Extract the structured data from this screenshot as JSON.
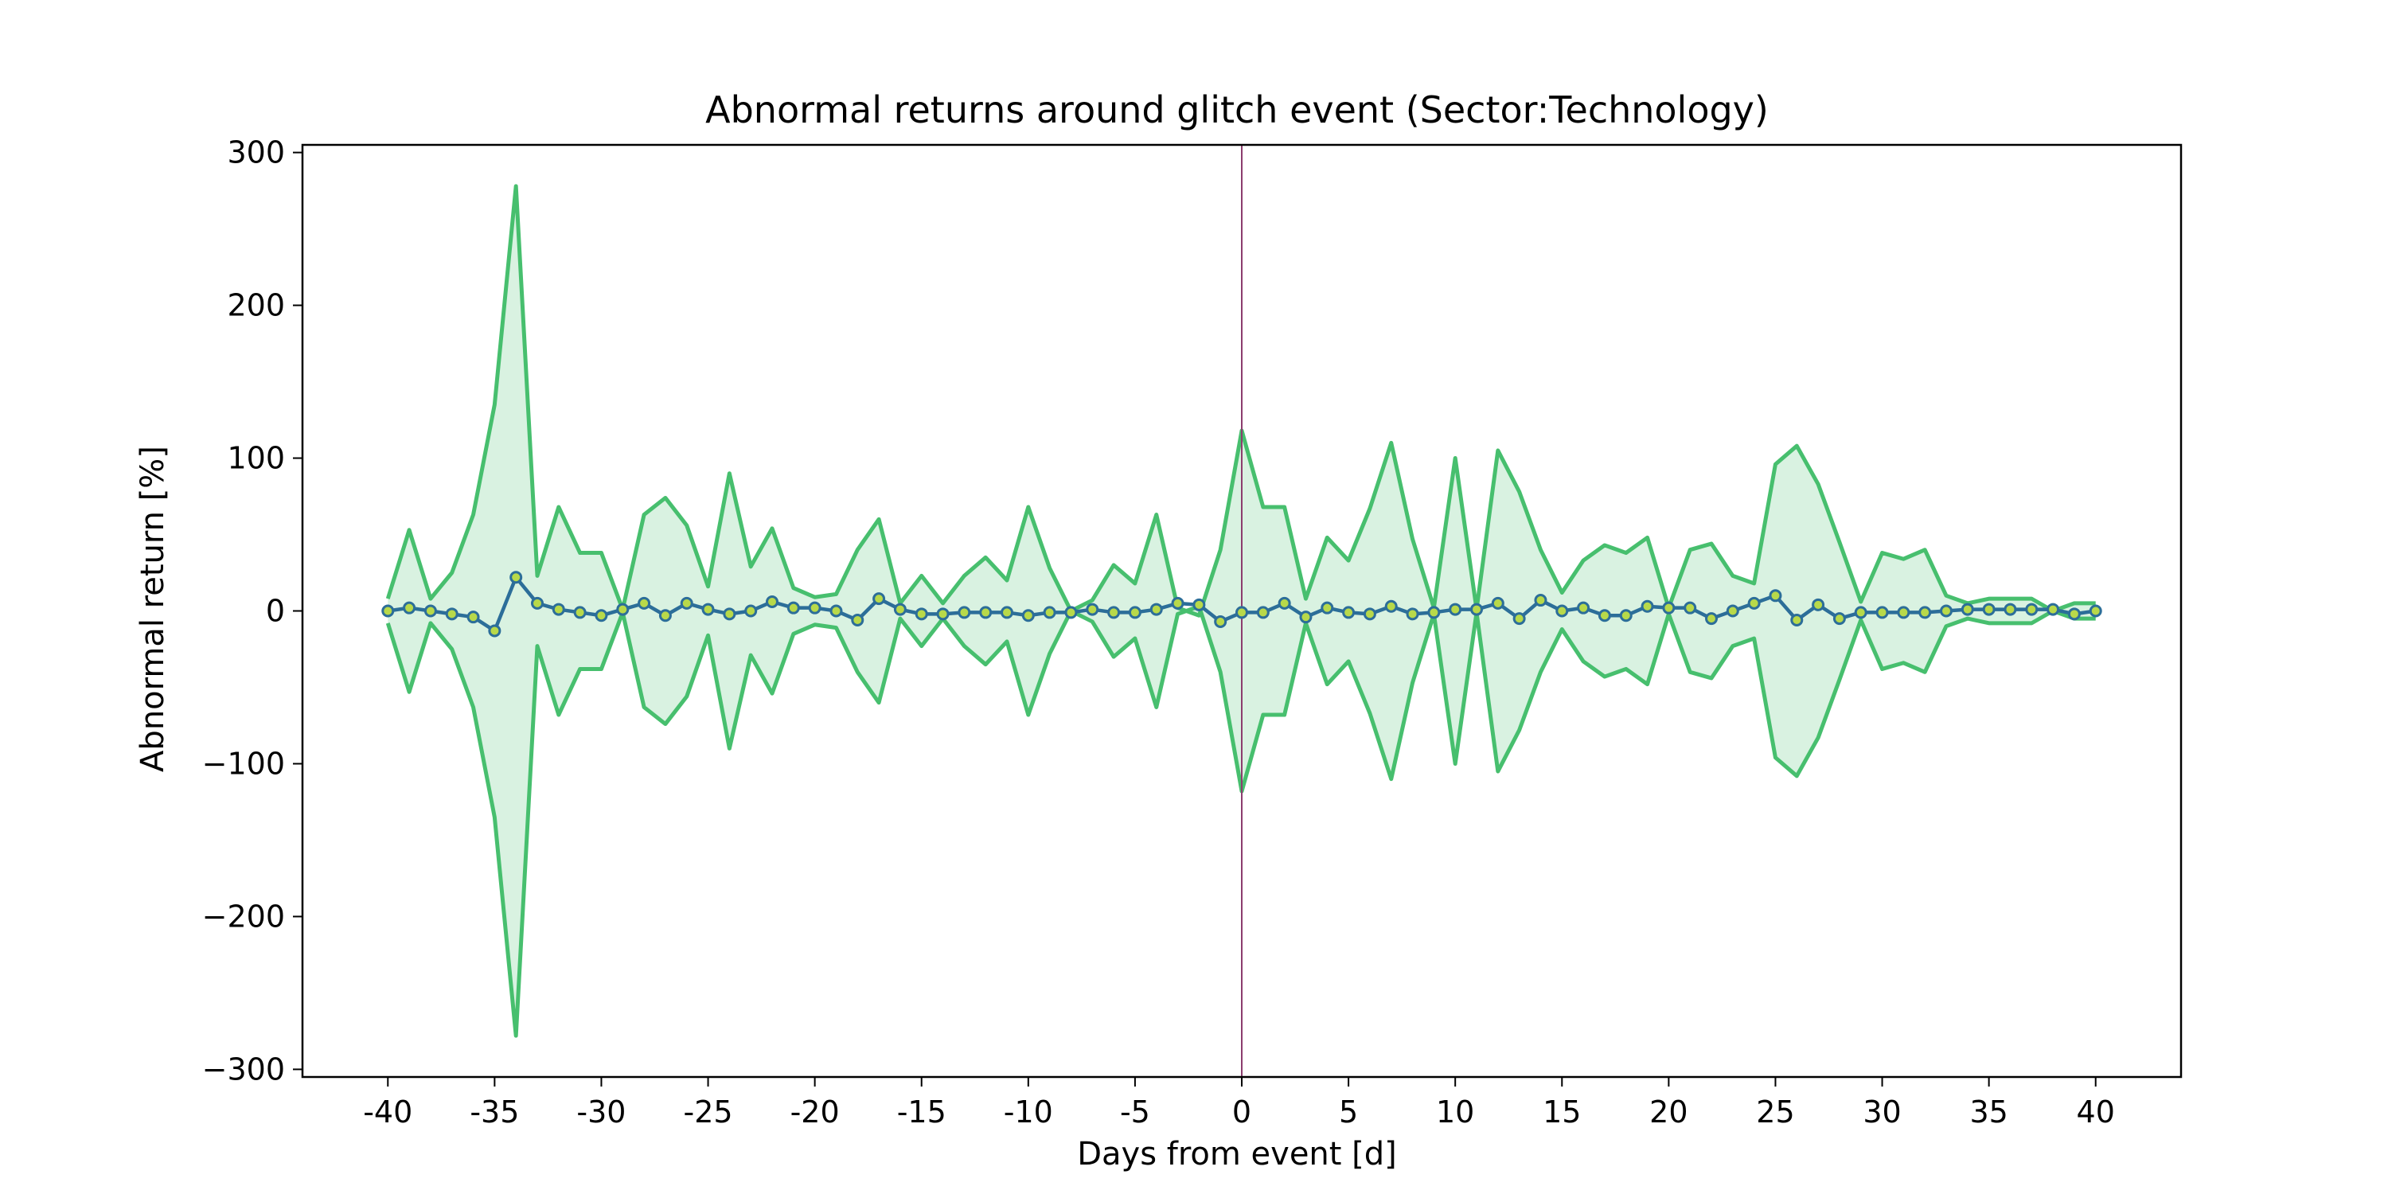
{
  "chart_data": {
    "type": "line",
    "title": "Abnormal returns around glitch event (Sector:Technology)",
    "xlabel": "Days from event [d]",
    "ylabel": "Abnormal return [%]",
    "xlim": [
      -44,
      44
    ],
    "ylim": [
      -305,
      305
    ],
    "xticks": [
      -40,
      -35,
      -30,
      -25,
      -20,
      -15,
      -10,
      -5,
      0,
      5,
      10,
      15,
      20,
      25,
      30,
      35,
      40
    ],
    "xtick_labels": [
      "-40",
      "-35",
      "-30",
      "-25",
      "-20",
      "-15",
      "-10",
      "-5",
      "0",
      "5",
      "10",
      "15",
      "20",
      "25",
      "30",
      "35",
      "40"
    ],
    "yticks": [
      300,
      200,
      100,
      0,
      -100,
      -200,
      -300
    ],
    "ytick_labels": [
      "300",
      "200",
      "100",
      "0",
      "−100",
      "−200",
      "−300"
    ],
    "event_day": 0,
    "grid": false,
    "legend": "none",
    "x": [
      -40,
      -39,
      -38,
      -37,
      -36,
      -35,
      -34,
      -33,
      -32,
      -31,
      -30,
      -29,
      -28,
      -27,
      -26,
      -25,
      -24,
      -23,
      -22,
      -21,
      -20,
      -19,
      -18,
      -17,
      -16,
      -15,
      -14,
      -13,
      -12,
      -11,
      -10,
      -9,
      -8,
      -7,
      -6,
      -5,
      -4,
      -3,
      -2,
      -1,
      0,
      1,
      2,
      3,
      4,
      5,
      6,
      7,
      8,
      9,
      10,
      11,
      12,
      13,
      14,
      15,
      16,
      17,
      18,
      19,
      20,
      21,
      22,
      23,
      24,
      25,
      26,
      27,
      28,
      29,
      30,
      31,
      32,
      33,
      34,
      35,
      36,
      37,
      38,
      39,
      40
    ],
    "series": [
      {
        "role": "mean",
        "values": [
          0,
          2,
          0,
          -2,
          -4,
          -13,
          22,
          5,
          1,
          -1,
          -3,
          1,
          5,
          -3,
          5,
          1,
          -2,
          0,
          6,
          2,
          2,
          0,
          -6,
          8,
          1,
          -2,
          -2,
          -1,
          -1,
          -1,
          -3,
          -1,
          -1,
          1,
          -1,
          -1,
          1,
          5,
          4,
          -7,
          -1,
          -1,
          5,
          -4,
          2,
          -1,
          -2,
          3,
          -2,
          -1,
          1,
          1,
          5,
          -5,
          7,
          0,
          2,
          -3,
          -3,
          3,
          2,
          2,
          -5,
          0,
          5,
          10,
          -6,
          4,
          -5,
          -1,
          -1,
          -1,
          -1,
          0,
          1,
          1,
          1,
          1,
          1,
          -2,
          0
        ]
      },
      {
        "role": "upper-band",
        "values": [
          8,
          53,
          8,
          25,
          63,
          135,
          278,
          23,
          68,
          38,
          38,
          1,
          63,
          74,
          56,
          16,
          90,
          29,
          54,
          15,
          9,
          11,
          40,
          60,
          5,
          23,
          5,
          23,
          35,
          20,
          68,
          28,
          0,
          7,
          30,
          18,
          63,
          2,
          -3,
          40,
          118,
          68,
          68,
          8,
          48,
          33,
          67,
          110,
          47,
          2,
          100,
          1,
          105,
          78,
          40,
          12,
          33,
          43,
          38,
          48,
          2,
          40,
          44,
          23,
          18,
          96,
          108,
          83,
          45,
          6,
          38,
          34,
          40,
          10,
          5,
          8,
          8,
          8,
          0,
          5,
          5
        ]
      },
      {
        "role": "lower-band",
        "values": [
          -8,
          -53,
          -8,
          -25,
          -63,
          -135,
          -278,
          -23,
          -68,
          -38,
          -38,
          -1,
          -63,
          -74,
          -56,
          -16,
          -90,
          -29,
          -54,
          -15,
          -9,
          -11,
          -40,
          -60,
          -5,
          -23,
          -5,
          -23,
          -35,
          -20,
          -68,
          -28,
          0,
          -7,
          -30,
          -18,
          -63,
          -2,
          3,
          -40,
          -118,
          -68,
          -68,
          -8,
          -48,
          -33,
          -67,
          -110,
          -47,
          -2,
          -100,
          -1,
          -105,
          -78,
          -40,
          -12,
          -33,
          -43,
          -38,
          -48,
          -2,
          -40,
          -44,
          -23,
          -18,
          -96,
          -108,
          -83,
          -45,
          -6,
          -38,
          -34,
          -40,
          -10,
          -5,
          -8,
          -8,
          -8,
          0,
          -5,
          -5
        ]
      }
    ],
    "colors": {
      "mean_line": "#2c6e99",
      "marker_fill": "#b8d94a",
      "band_line": "#47bf6e",
      "band_fill": "#d9f2e1",
      "event_line": "#8c3d6e",
      "axes": "#000000"
    }
  }
}
